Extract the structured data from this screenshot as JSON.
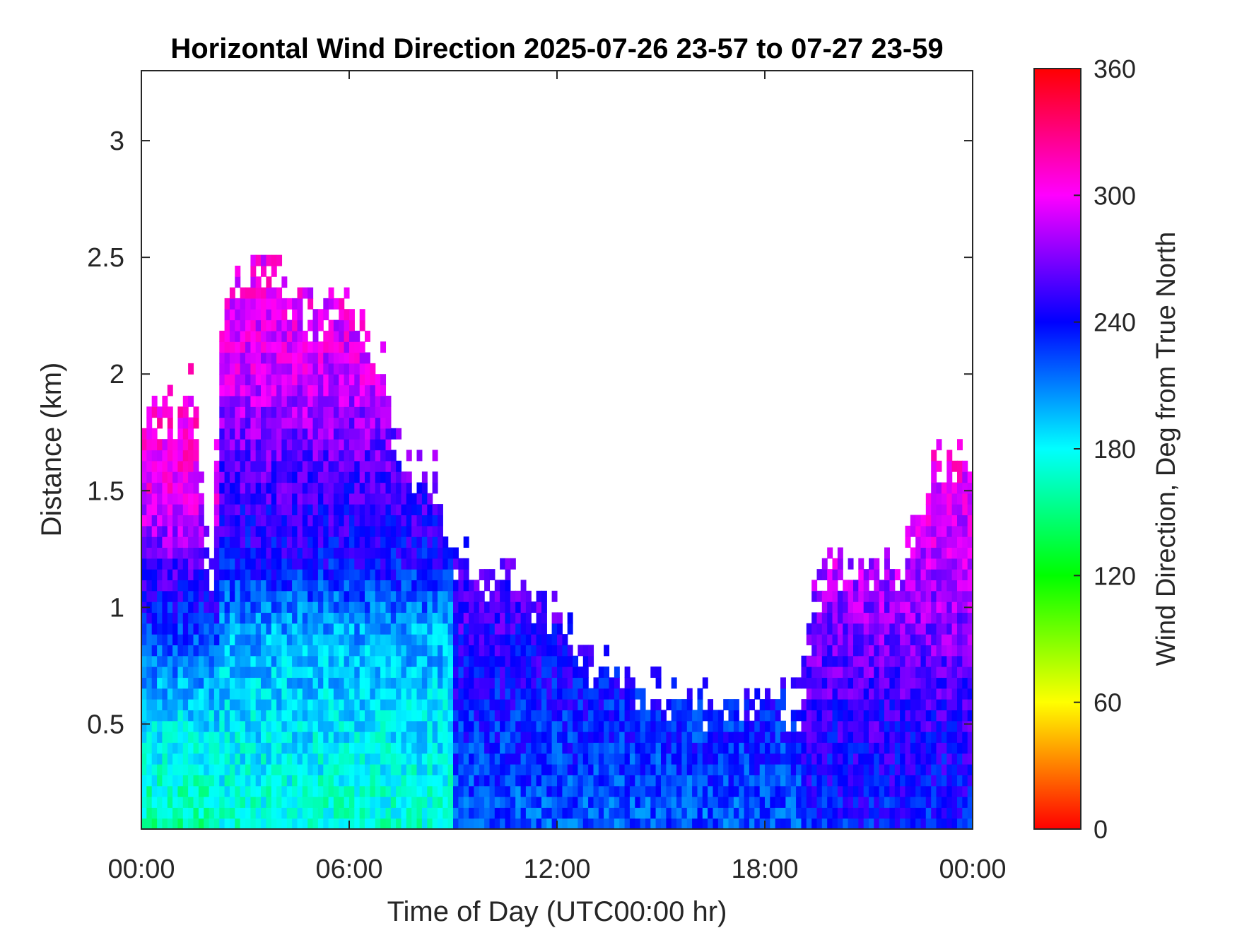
{
  "chart_data": {
    "type": "heatmap",
    "title": "Horizontal Wind Direction 2025-07-26 23-57 to 07-27 23-59",
    "xlabel": "Time of Day (UTC00:00 hr)",
    "ylabel": "Distance (km)",
    "colorbar_label": "Wind Direction, Deg from True North",
    "x_unit": "hours",
    "xlim": [
      0,
      24
    ],
    "ylim": [
      0.05,
      3.3
    ],
    "clim": [
      0,
      360
    ],
    "x_ticks": [
      {
        "value": 0,
        "label": "00:00"
      },
      {
        "value": 6,
        "label": "06:00"
      },
      {
        "value": 12,
        "label": "12:00"
      },
      {
        "value": 18,
        "label": "18:00"
      },
      {
        "value": 24,
        "label": "00:00"
      }
    ],
    "y_ticks": [
      {
        "value": 0.5,
        "label": "0.5"
      },
      {
        "value": 1,
        "label": "1"
      },
      {
        "value": 1.5,
        "label": "1.5"
      },
      {
        "value": 2,
        "label": "2"
      },
      {
        "value": 2.5,
        "label": "2.5"
      },
      {
        "value": 3,
        "label": "3"
      }
    ],
    "colorbar_ticks": [
      {
        "value": 0,
        "label": "0"
      },
      {
        "value": 60,
        "label": "60"
      },
      {
        "value": 120,
        "label": "120"
      },
      {
        "value": 180,
        "label": "180"
      },
      {
        "value": 240,
        "label": "240"
      },
      {
        "value": 300,
        "label": "300"
      },
      {
        "value": 360,
        "label": "360"
      }
    ],
    "colormap": [
      "#ff0000",
      "#ffff00",
      "#00ff00",
      "#00ffff",
      "#0000ff",
      "#ff00ff",
      "#ff0000"
    ],
    "grid": false,
    "data_top_height_km": {
      "time_h": [
        0,
        0.5,
        1,
        1.5,
        2,
        2.3,
        3,
        4,
        5,
        6,
        7,
        7.5,
        8,
        8.5,
        9,
        10,
        11,
        12,
        13,
        14,
        15,
        16,
        17,
        18,
        19,
        19.5,
        20,
        21,
        22,
        23,
        24
      ],
      "top_km": [
        1.7,
        1.85,
        1.8,
        1.95,
        1.0,
        2.2,
        2.45,
        2.4,
        2.25,
        2.3,
        2.0,
        1.6,
        1.6,
        1.55,
        1.25,
        1.15,
        1.1,
        0.95,
        0.75,
        0.68,
        0.62,
        0.58,
        0.6,
        0.63,
        0.6,
        1.1,
        1.2,
        1.2,
        1.2,
        1.6,
        1.6
      ]
    },
    "direction_profiles_deg": [
      {
        "time_range_h": [
          0,
          2
        ],
        "height_km": [
          0.1,
          0.5,
          0.8,
          1.1,
          1.5,
          2.0
        ],
        "direction_deg": [
          160,
          185,
          215,
          250,
          300,
          310
        ]
      },
      {
        "time_range_h": [
          2.3,
          9
        ],
        "height_km": [
          0.1,
          0.5,
          0.9,
          1.2,
          1.6,
          2.0,
          2.4
        ],
        "direction_deg": [
          170,
          185,
          200,
          240,
          260,
          290,
          300
        ]
      },
      {
        "time_range_h": [
          9,
          19
        ],
        "height_km": [
          0.1,
          0.4,
          0.7,
          1.0
        ],
        "direction_deg": [
          220,
          230,
          240,
          255
        ]
      },
      {
        "time_range_h": [
          19,
          24
        ],
        "height_km": [
          0.1,
          0.5,
          0.9,
          1.2,
          1.6
        ],
        "direction_deg": [
          235,
          250,
          270,
          285,
          300
        ]
      }
    ]
  }
}
